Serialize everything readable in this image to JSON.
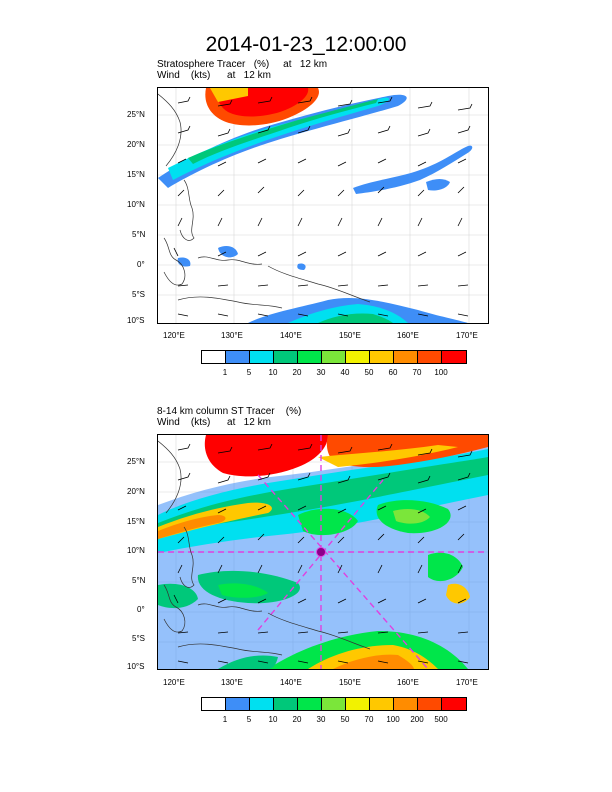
{
  "title": "2014-01-23_12:00:00",
  "panels": [
    {
      "subtitle_line1": "Stratosphere Tracer   (%)     at   12 km",
      "subtitle_line2": "Wind    (kts)      at   12 km",
      "lat_labels": [
        "25°N",
        "20°N",
        "15°N",
        "10°N",
        "5°N",
        "0°",
        "5°S",
        "10°S"
      ],
      "lon_labels": [
        "120°E",
        "130°E",
        "140°E",
        "150°E",
        "160°E",
        "170°E"
      ],
      "colorbar_labels": [
        "1",
        "5",
        "10",
        "20",
        "30",
        "40",
        "50",
        "60",
        "70",
        "100"
      ],
      "colorbar_colors": [
        "#ffffff",
        "#3e8ef7",
        "#00e0f0",
        "#00c87a",
        "#00e64a",
        "#7be63a",
        "#f2f200",
        "#ffc800",
        "#ff8c00",
        "#ff4a00",
        "#ff0000"
      ]
    },
    {
      "subtitle_line1": "8-14 km column ST Tracer    (%)",
      "subtitle_line2": "Wind    (kts)      at   12 km",
      "lat_labels": [
        "25°N",
        "20°N",
        "15°N",
        "10°N",
        "5°N",
        "0°",
        "5°S",
        "10°S"
      ],
      "lon_labels": [
        "120°E",
        "130°E",
        "140°E",
        "150°E",
        "160°E",
        "170°E"
      ],
      "colorbar_labels": [
        "1",
        "5",
        "10",
        "20",
        "30",
        "50",
        "70",
        "100",
        "200",
        "500"
      ],
      "colorbar_colors": [
        "#ffffff",
        "#3e8ef7",
        "#00e0f0",
        "#00c87a",
        "#00e64a",
        "#7be63a",
        "#f2f200",
        "#ffc800",
        "#ff8c00",
        "#ff4a00",
        "#ff0000"
      ]
    }
  ]
}
